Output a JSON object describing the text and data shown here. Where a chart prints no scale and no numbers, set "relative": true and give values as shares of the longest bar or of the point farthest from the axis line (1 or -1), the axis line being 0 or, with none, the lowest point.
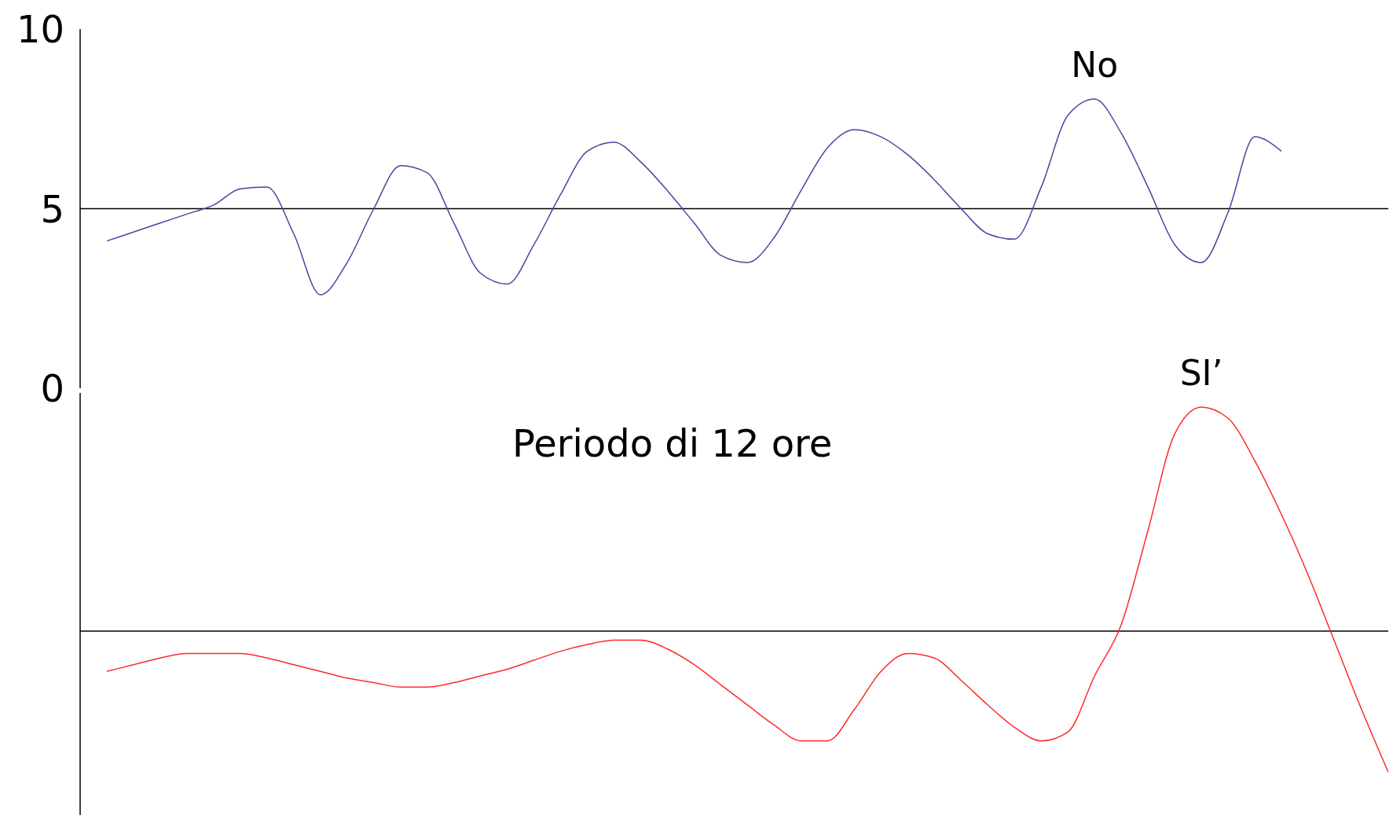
{
  "chart_data": [
    {
      "type": "line",
      "categories": [
        null,
        null,
        null,
        null,
        null,
        null,
        null,
        null,
        null,
        null,
        null,
        null,
        null,
        null,
        null,
        null,
        null,
        null,
        null,
        null,
        null,
        null,
        null,
        null,
        null,
        null,
        null,
        null,
        null,
        null,
        null,
        null,
        null,
        null,
        null,
        null,
        null,
        null,
        null,
        null,
        null,
        null,
        null,
        null,
        null,
        null,
        null,
        null,
        null,
        null
      ],
      "series": [
        {
          "name": "No",
          "color": "#4646a0",
          "values": [
            null,
            4.1,
            4.35,
            4.6,
            4.85,
            5.1,
            5.55,
            5.6,
            4.3,
            2.6,
            3.5,
            5.0,
            6.2,
            6.0,
            4.6,
            3.2,
            2.9,
            4.0,
            5.4,
            6.6,
            6.85,
            6.3,
            5.5,
            4.6,
            3.7,
            3.5,
            4.2,
            5.5,
            6.7,
            7.2,
            7.0,
            6.5,
            5.8,
            5.0,
            4.3,
            4.15,
            5.6,
            7.6,
            8.05,
            7.1,
            5.6,
            4.0,
            3.5,
            4.9,
            7.0,
            6.6,
            null,
            null,
            null,
            null
          ]
        }
      ],
      "ylim": [
        0,
        10
      ],
      "yticks": [
        0,
        5,
        10
      ],
      "tick_labels": "y",
      "ref_lines": [
        {
          "axis": "y",
          "value": 5,
          "color": "#000000"
        }
      ]
    },
    {
      "type": "line",
      "relative": true,
      "annotations": [
        "Periodo di 12 ore"
      ],
      "categories": [
        null,
        null,
        null,
        null,
        null,
        null,
        null,
        null,
        null,
        null,
        null,
        null,
        null,
        null,
        null,
        null,
        null,
        null,
        null,
        null,
        null,
        null,
        null,
        null,
        null,
        null,
        null,
        null,
        null,
        null,
        null,
        null,
        null,
        null,
        null,
        null,
        null,
        null,
        null,
        null,
        null,
        null,
        null,
        null,
        null,
        null,
        null,
        null,
        null,
        null
      ],
      "series": [
        {
          "name": "SI’",
          "color": "#ff2a2a",
          "values": [
            null,
            -0.18,
            -0.15,
            -0.12,
            -0.1,
            -0.1,
            -0.1,
            -0.12,
            -0.15,
            -0.18,
            -0.21,
            -0.23,
            -0.25,
            -0.25,
            -0.23,
            -0.2,
            -0.17,
            -0.13,
            -0.09,
            -0.06,
            -0.04,
            -0.04,
            -0.08,
            -0.15,
            -0.24,
            -0.33,
            -0.42,
            -0.49,
            -0.49,
            -0.35,
            -0.18,
            -0.1,
            -0.12,
            -0.22,
            -0.33,
            -0.43,
            -0.49,
            -0.45,
            -0.2,
            0.03,
            0.45,
            0.88,
            1,
            0.95,
            0.76,
            0.52,
            0.25,
            -0.05,
            -0.35,
            -0.63
          ]
        }
      ]
    }
  ]
}
